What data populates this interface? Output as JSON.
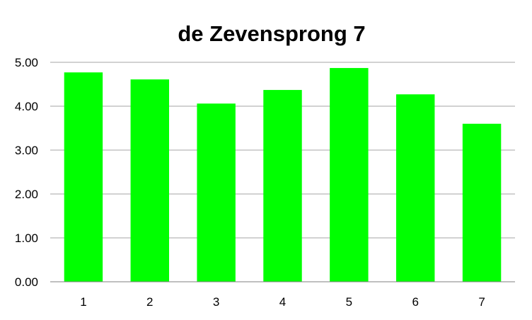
{
  "chart_data": {
    "type": "bar",
    "title": "de Zevensprong 7",
    "xlabel": "",
    "ylabel": "",
    "categories": [
      "1",
      "2",
      "3",
      "4",
      "5",
      "6",
      "7"
    ],
    "values": [
      4.77,
      4.61,
      4.06,
      4.37,
      4.87,
      4.27,
      3.6
    ],
    "ylim": [
      0,
      5
    ],
    "yticks": [
      "0.00",
      "1.00",
      "2.00",
      "3.00",
      "4.00",
      "5.00"
    ],
    "grid": true,
    "legend": "none",
    "bar_color": "#00ff00"
  }
}
